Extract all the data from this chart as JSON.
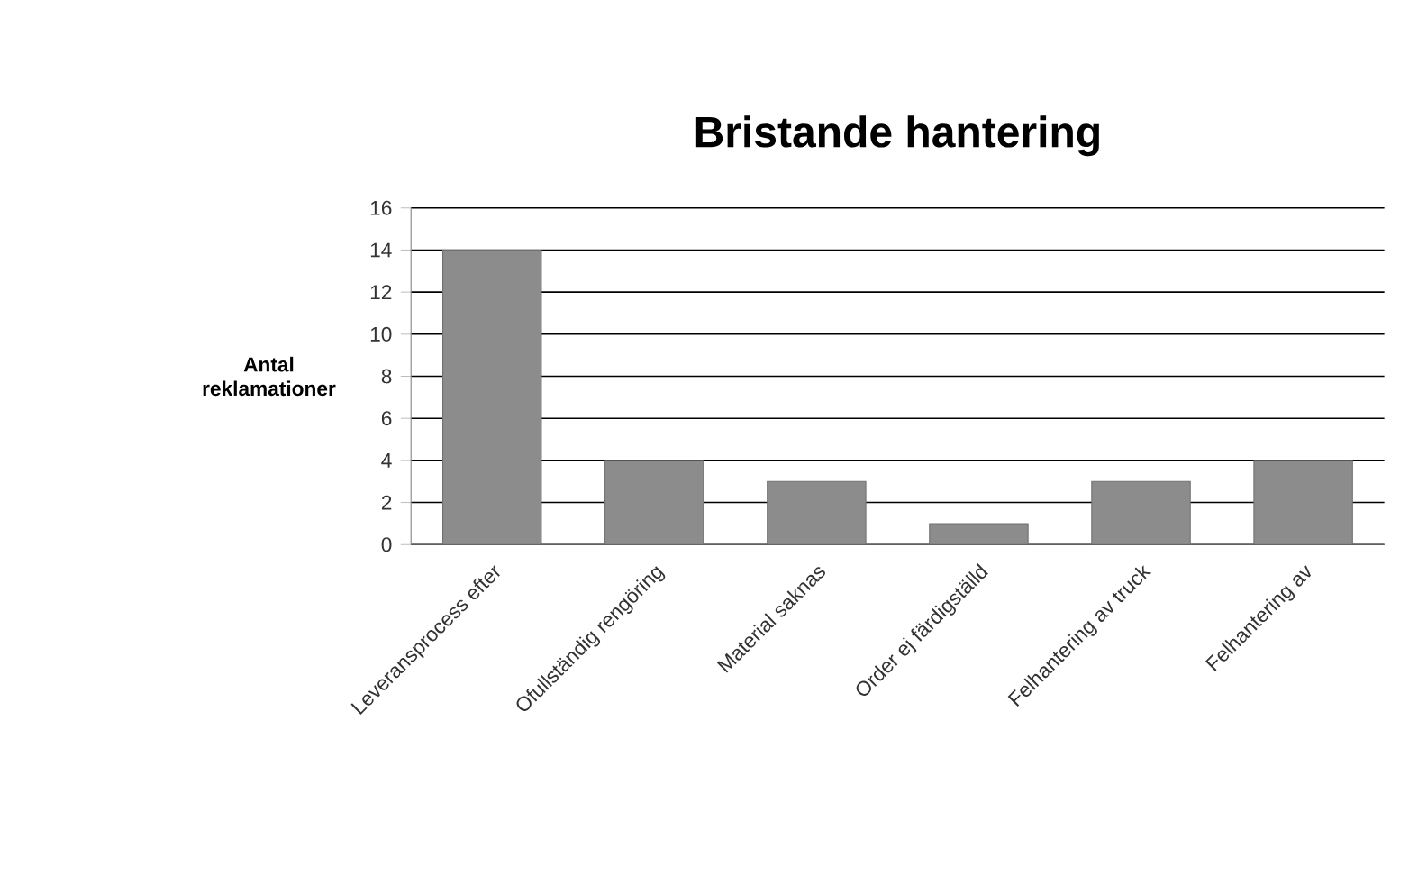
{
  "chart_data": {
    "type": "bar",
    "title": "Bristande hantering",
    "ylabel": "Antal reklamationer",
    "categories": [
      "Leveransprocess efter",
      "Ofullständig rengöring",
      "Material saknas",
      "Order ej färdigställd",
      "Felhantering av truck",
      "Felhantering av"
    ],
    "values": [
      14,
      4,
      3,
      1,
      3,
      4
    ],
    "color": "#8c8c8c",
    "ylim": [
      0,
      16
    ],
    "yticks": [
      0,
      2,
      4,
      6,
      8,
      10,
      12,
      14,
      16
    ],
    "grid": "y"
  }
}
